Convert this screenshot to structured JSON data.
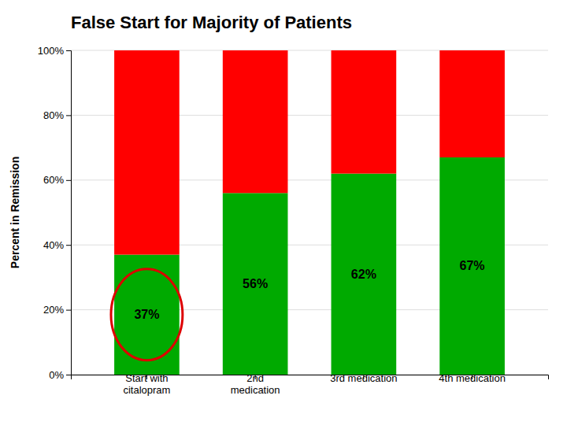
{
  "chart_data": {
    "type": "bar",
    "title": "False Start for Majority of Patients",
    "ylabel": "Percent in Remission",
    "categories": [
      "Start with\ncitalopram",
      "2nd\nmedication",
      "3rd medication",
      "4th medication"
    ],
    "series": [
      {
        "color": "#00AA00",
        "values": [
          37,
          56,
          62,
          67
        ],
        "value_labels": [
          "37%",
          "56%",
          "62%",
          "67%"
        ]
      },
      {
        "color": "#FF0000",
        "values": [
          63,
          44,
          38,
          33
        ]
      }
    ],
    "stacked": true,
    "ylim": [
      0,
      100
    ],
    "yticks": [
      {
        "value": 0,
        "label": "0%"
      },
      {
        "value": 20,
        "label": "20%"
      },
      {
        "value": 40,
        "label": "40%"
      },
      {
        "value": 60,
        "label": "60%"
      },
      {
        "value": 80,
        "label": "80%"
      },
      {
        "value": 100,
        "label": "100%"
      }
    ],
    "grid": true
  }
}
